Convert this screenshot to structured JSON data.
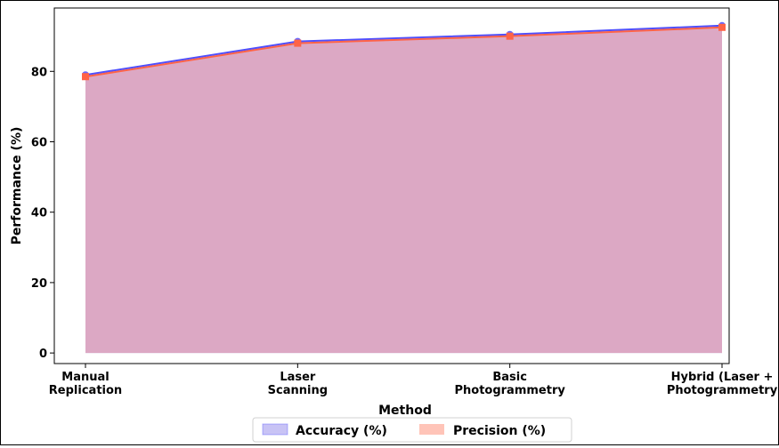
{
  "chart_data": {
    "type": "area",
    "categories": [
      "Manual Replication",
      "Laser Scanning",
      "Basic Photogrammetry",
      "Hybrid (Laser + Photogrammetry)"
    ],
    "category_lines": [
      [
        "Manual",
        "Replication"
      ],
      [
        "Laser",
        "Scanning"
      ],
      [
        "Basic",
        "Photogrammetry"
      ],
      [
        "Hybrid (Laser +",
        "Photogrammetry"
      ]
    ],
    "series": [
      {
        "name": "Accuracy (%)",
        "values": [
          79,
          88.5,
          90.5,
          93
        ],
        "color": "#4f4fff",
        "fill": "#c8c3f5",
        "marker": "circle"
      },
      {
        "name": "Precision (%)",
        "values": [
          78.5,
          88,
          90,
          92.5
        ],
        "color": "#ff6347",
        "fill": "#ffc4b8",
        "marker": "square"
      }
    ],
    "overlap_fill": "#dca8c4",
    "xlabel": "Method",
    "ylabel": "Performance (%)",
    "yticks": [
      0,
      20,
      40,
      60,
      80
    ],
    "ylim": [
      -3,
      98
    ],
    "legend": "bottom-center",
    "grid": false
  }
}
